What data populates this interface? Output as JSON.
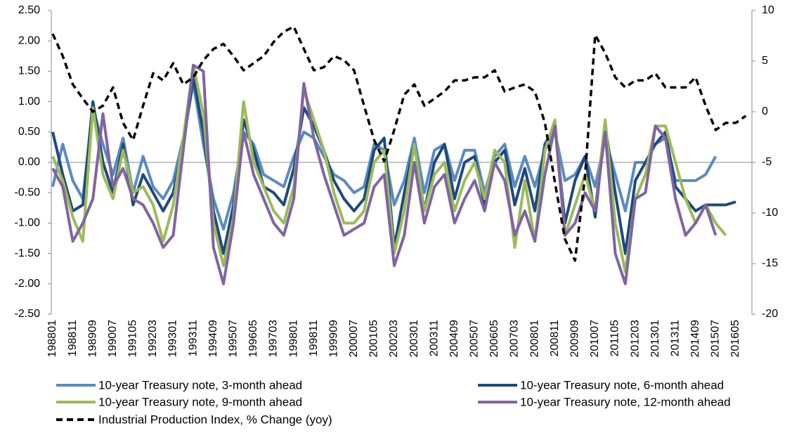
{
  "chart_data": {
    "type": "line",
    "categories": [
      "198801",
      null,
      "198811",
      null,
      "198909",
      null,
      "199007",
      null,
      "199105",
      null,
      "199203",
      null,
      "199301",
      null,
      "199311",
      null,
      "199409",
      null,
      "199507",
      null,
      "199605",
      null,
      "199703",
      null,
      "199801",
      null,
      "199811",
      null,
      "199909",
      null,
      "200007",
      null,
      "200105",
      null,
      "200203",
      null,
      "200301",
      null,
      "200311",
      null,
      "200409",
      null,
      "200507",
      null,
      "200605",
      null,
      "200703",
      null,
      "200801",
      null,
      "200811",
      null,
      "200909",
      null,
      "201007",
      null,
      "201105",
      null,
      "201203",
      null,
      "201301",
      null,
      "201311",
      null,
      "201409",
      null,
      "201507",
      null,
      "201605",
      null
    ],
    "ylim": [
      -2.5,
      2.5
    ],
    "yticks": [
      {
        "value": -2.5,
        "label": "-2.50"
      },
      {
        "value": -2,
        "label": "-2.00"
      },
      {
        "value": -1.5,
        "label": "-1.50"
      },
      {
        "value": -1,
        "label": "-1.00"
      },
      {
        "value": -0.5,
        "label": "-0.50"
      },
      {
        "value": 0,
        "label": "0.00"
      },
      {
        "value": 0.5,
        "label": "0.50"
      },
      {
        "value": 1,
        "label": "1.00"
      },
      {
        "value": 1.5,
        "label": "1.50"
      },
      {
        "value": 2,
        "label": "2.00"
      },
      {
        "value": 2.5,
        "label": "2.50"
      }
    ],
    "y2lim": [
      -20,
      10
    ],
    "y2ticks": [
      -20,
      -15,
      -10,
      -5,
      0,
      5,
      10
    ],
    "legend": "bottom",
    "series": [
      {
        "name": "10-year Treasury note, 3-month ahead",
        "color": "#5a8ac3",
        "values": [
          -0.4,
          0.3,
          -0.3,
          -0.6,
          0.9,
          0.3,
          -0.2,
          0.4,
          -0.5,
          0.1,
          -0.4,
          -0.6,
          -0.3,
          0.4,
          1.3,
          0.3,
          -0.6,
          -1.1,
          -0.5,
          0.5,
          0.3,
          -0.2,
          -0.3,
          -0.4,
          0.1,
          0.5,
          0.4,
          0.1,
          -0.2,
          -0.3,
          -0.5,
          -0.4,
          0.3,
          0.2,
          -0.7,
          -0.3,
          0.4,
          -0.5,
          0.2,
          0.3,
          -0.3,
          0.2,
          0.2,
          -0.5,
          0.1,
          0.3,
          -0.4,
          0.1,
          -0.4,
          0.2,
          0.5,
          -0.3,
          -0.2,
          0.1,
          -0.4,
          0.4,
          -0.2,
          -0.8,
          0.0,
          0.0,
          0.3,
          0.4,
          -0.3,
          -0.3,
          -0.3,
          -0.2,
          0.1,
          null,
          null,
          null
        ]
      },
      {
        "name": "10-year Treasury note, 6-month ahead",
        "color": "#1f497d",
        "values": [
          0.5,
          -0.2,
          -0.8,
          -0.7,
          1.0,
          0.0,
          -0.5,
          0.3,
          -0.7,
          -0.2,
          -0.5,
          -0.8,
          -0.5,
          0.3,
          1.4,
          0.5,
          -0.8,
          -1.5,
          -0.7,
          0.7,
          0.2,
          -0.4,
          -0.5,
          -0.7,
          -0.1,
          0.9,
          0.6,
          0.2,
          -0.3,
          -0.6,
          -0.8,
          -0.6,
          0.2,
          0.4,
          -1.4,
          -0.5,
          0.3,
          -0.8,
          0.0,
          0.3,
          -0.6,
          0.0,
          0.1,
          -0.7,
          0.0,
          0.2,
          -0.7,
          -0.1,
          -0.8,
          0.3,
          0.6,
          -1.0,
          -0.3,
          0.1,
          -0.9,
          0.6,
          -0.5,
          -1.5,
          -0.3,
          0.0,
          0.3,
          0.5,
          -0.4,
          -0.6,
          -0.8,
          -0.7,
          -0.7,
          -0.7,
          -0.65,
          null
        ]
      },
      {
        "name": "10-year Treasury note, 9-month ahead",
        "color": "#9bbb59",
        "values": [
          0.1,
          -0.3,
          -0.9,
          -1.3,
          0.9,
          -0.2,
          -0.6,
          0.2,
          -0.5,
          -0.4,
          -0.7,
          -1.3,
          -0.7,
          0.4,
          1.6,
          0.8,
          -1.0,
          -1.7,
          -0.9,
          1.0,
          0.0,
          -0.4,
          -0.8,
          -1.0,
          -0.4,
          1.2,
          0.7,
          0.2,
          -0.5,
          -1.0,
          -1.0,
          -0.8,
          0.0,
          0.2,
          -1.5,
          -0.8,
          0.3,
          -0.8,
          -0.2,
          0.0,
          -0.8,
          -0.3,
          0.0,
          -0.6,
          0.2,
          0.0,
          -1.4,
          -0.3,
          -1.3,
          0.2,
          0.7,
          -1.2,
          -0.7,
          -0.2,
          -0.8,
          0.7,
          -1.0,
          -1.8,
          -0.6,
          -0.2,
          0.6,
          0.6,
          0.0,
          -0.6,
          -1.0,
          -0.7,
          -1.0,
          -1.2,
          null,
          null
        ]
      },
      {
        "name": "10-year Treasury note, 12-month ahead",
        "color": "#8064a2",
        "values": [
          -0.1,
          -0.4,
          -1.3,
          -1.0,
          -0.6,
          0.8,
          -0.4,
          -0.1,
          -0.6,
          -0.7,
          -1.0,
          -1.4,
          -1.2,
          0.2,
          1.6,
          1.5,
          -1.4,
          -2.0,
          -1.0,
          0.5,
          -0.2,
          -0.6,
          -1.0,
          -1.2,
          -0.6,
          1.3,
          0.4,
          -0.2,
          -0.7,
          -1.2,
          -1.1,
          -1.0,
          -0.4,
          -0.2,
          -1.7,
          -1.2,
          0.0,
          -1.0,
          -0.4,
          -0.2,
          -1.0,
          -0.6,
          -0.3,
          -0.8,
          0.0,
          -0.3,
          -1.2,
          -0.8,
          -1.3,
          -0.2,
          0.6,
          -1.2,
          -1.0,
          -0.5,
          -0.8,
          0.5,
          -1.5,
          -2.0,
          -0.6,
          -0.5,
          0.6,
          0.4,
          -0.6,
          -1.2,
          -1.0,
          -0.7,
          -1.2,
          null,
          null,
          null
        ]
      },
      {
        "name": "Industrial Production Index, % Change (yoy)",
        "color": "#000000",
        "dashed": true,
        "axis": "y2",
        "values": [
          7.7,
          5.5,
          2.7,
          1.3,
          0,
          0.6,
          2.4,
          -1.1,
          -2.8,
          0.6,
          3.8,
          3.1,
          4.8,
          2.7,
          3.4,
          5.1,
          6.2,
          6.7,
          5.5,
          4.1,
          4.8,
          5.5,
          6.9,
          7.9,
          8.4,
          6.2,
          4.1,
          4.4,
          5.5,
          5.1,
          4.1,
          0.6,
          -2.8,
          -4.9,
          -1.8,
          1.7,
          2.7,
          0.6,
          1.3,
          2.0,
          3.1,
          3.1,
          3.4,
          3.4,
          4.1,
          2.0,
          2.4,
          2.7,
          2.0,
          -1.1,
          -7.0,
          -12.6,
          -14.7,
          -6.3,
          7.6,
          5.8,
          3.4,
          2.4,
          3.1,
          3.1,
          3.8,
          2.4,
          2.4,
          2.4,
          3.4,
          0.6,
          -1.8,
          -1.1,
          -1.1,
          -0.4
        ]
      }
    ]
  }
}
